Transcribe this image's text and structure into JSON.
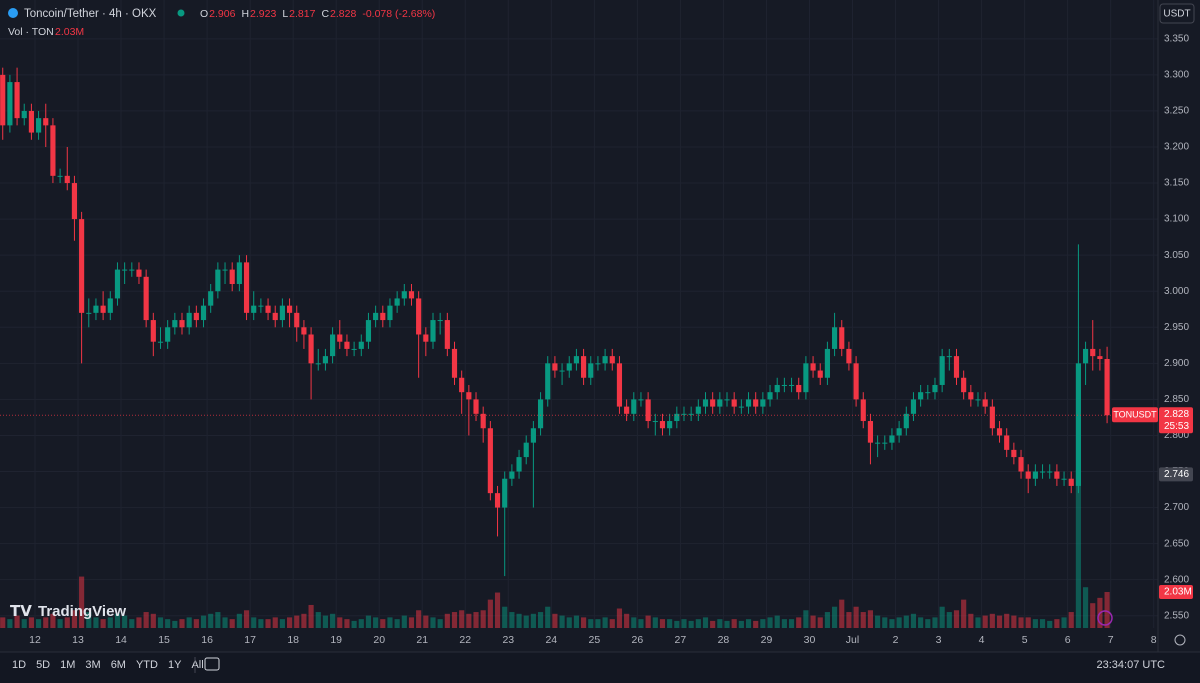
{
  "chart_data": {
    "type": "candlestick",
    "title": "Toncoin/Tether · 4h · OKX",
    "change": "-0.078 (-2.68%)",
    "volume_title": "Vol · TON",
    "volume_last_label": "2.03M",
    "symbol_label": "TONUSDT",
    "countdown": "25:53",
    "marker_level": 2.746,
    "colors": {
      "up": "#089981",
      "down": "#f23645"
    },
    "grid": true,
    "open": [
      3.3,
      3.23,
      3.29,
      3.24,
      3.25,
      3.22,
      3.24,
      3.23,
      3.16,
      3.16,
      3.15,
      3.1,
      2.97,
      2.97,
      2.98,
      2.97,
      2.99,
      3.03,
      3.03,
      3.03,
      3.02,
      2.96,
      2.93,
      2.93,
      2.95,
      2.96,
      2.95,
      2.97,
      2.96,
      2.98,
      3.0,
      3.03,
      3.03,
      3.01,
      3.04,
      2.97,
      2.98,
      2.98,
      2.97,
      2.96,
      2.98,
      2.97,
      2.95,
      2.94,
      2.9,
      2.9,
      2.91,
      2.94,
      2.93,
      2.92,
      2.92,
      2.93,
      2.96,
      2.97,
      2.96,
      2.98,
      2.99,
      3.0,
      2.99,
      2.94,
      2.93,
      2.96,
      2.96,
      2.92,
      2.88,
      2.86,
      2.85,
      2.83,
      2.81,
      2.72,
      2.7,
      2.74,
      2.75,
      2.77,
      2.79,
      2.81,
      2.85,
      2.9,
      2.89,
      2.89,
      2.9,
      2.91,
      2.88,
      2.9,
      2.9,
      2.91,
      2.9,
      2.84,
      2.83,
      2.85,
      2.85,
      2.82,
      2.82,
      2.81,
      2.82,
      2.83,
      2.83,
      2.83,
      2.84,
      2.85,
      2.84,
      2.85,
      2.85,
      2.84,
      2.84,
      2.85,
      2.84,
      2.85,
      2.86,
      2.87,
      2.87,
      2.87,
      2.86,
      2.9,
      2.89,
      2.88,
      2.92,
      2.95,
      2.92,
      2.9,
      2.85,
      2.82,
      2.79,
      2.79,
      2.79,
      2.8,
      2.81,
      2.83,
      2.85,
      2.86,
      2.86,
      2.87,
      2.91,
      2.91,
      2.88,
      2.86,
      2.85,
      2.85,
      2.84,
      2.81,
      2.8,
      2.78,
      2.77,
      2.75,
      2.74,
      2.75,
      2.75,
      2.75,
      2.74,
      2.74,
      2.73,
      2.9,
      2.92,
      2.91,
      2.906
    ],
    "high": [
      3.31,
      3.3,
      3.31,
      3.26,
      3.26,
      3.25,
      3.26,
      3.24,
      3.17,
      3.2,
      3.16,
      3.11,
      2.99,
      2.99,
      3.0,
      3.0,
      3.04,
      3.04,
      3.04,
      3.04,
      3.03,
      2.97,
      2.95,
      2.96,
      2.97,
      2.97,
      2.98,
      2.98,
      2.99,
      3.01,
      3.04,
      3.04,
      3.04,
      3.05,
      3.05,
      3.0,
      2.99,
      2.99,
      2.98,
      2.99,
      2.99,
      2.98,
      2.96,
      2.95,
      2.92,
      2.92,
      2.95,
      2.96,
      2.94,
      2.93,
      2.94,
      2.97,
      2.98,
      2.98,
      2.99,
      3.0,
      3.01,
      3.01,
      3.0,
      2.95,
      2.97,
      2.97,
      2.97,
      2.93,
      2.89,
      2.87,
      2.86,
      2.84,
      2.82,
      2.73,
      2.75,
      2.76,
      2.78,
      2.8,
      2.82,
      2.86,
      2.91,
      2.91,
      2.9,
      2.91,
      2.92,
      2.92,
      2.91,
      2.91,
      2.92,
      2.92,
      2.91,
      2.85,
      2.86,
      2.86,
      2.86,
      2.83,
      2.83,
      2.83,
      2.84,
      2.84,
      2.84,
      2.85,
      2.86,
      2.86,
      2.86,
      2.86,
      2.86,
      2.85,
      2.86,
      2.86,
      2.86,
      2.87,
      2.88,
      2.88,
      2.88,
      2.88,
      2.91,
      2.91,
      2.9,
      2.93,
      2.97,
      2.96,
      2.93,
      2.91,
      2.86,
      2.83,
      2.8,
      2.8,
      2.81,
      2.82,
      2.84,
      2.86,
      2.87,
      2.87,
      2.88,
      2.92,
      2.92,
      2.92,
      2.89,
      2.87,
      2.86,
      2.86,
      2.85,
      2.82,
      2.81,
      2.79,
      2.78,
      2.76,
      2.76,
      2.76,
      2.76,
      2.76,
      2.75,
      2.75,
      3.065,
      2.93,
      2.96,
      2.92,
      2.923
    ],
    "low": [
      3.21,
      3.22,
      3.23,
      3.23,
      3.21,
      3.21,
      3.2,
      3.15,
      3.15,
      3.14,
      3.07,
      2.9,
      2.95,
      2.96,
      2.96,
      2.96,
      2.98,
      3.01,
      3.02,
      3.01,
      2.95,
      2.91,
      2.92,
      2.92,
      2.94,
      2.94,
      2.94,
      2.95,
      2.95,
      2.97,
      2.99,
      3.01,
      3.0,
      3.0,
      2.96,
      2.96,
      2.97,
      2.96,
      2.95,
      2.95,
      2.95,
      2.93,
      2.92,
      2.85,
      2.89,
      2.89,
      2.9,
      2.92,
      2.91,
      2.91,
      2.91,
      2.92,
      2.95,
      2.95,
      2.95,
      2.97,
      2.98,
      2.98,
      2.88,
      2.91,
      2.92,
      2.94,
      2.91,
      2.87,
      2.83,
      2.8,
      2.82,
      2.79,
      2.71,
      2.66,
      2.605,
      2.73,
      2.74,
      2.76,
      2.7,
      2.8,
      2.84,
      2.88,
      2.87,
      2.88,
      2.89,
      2.87,
      2.87,
      2.89,
      2.89,
      2.89,
      2.83,
      2.82,
      2.82,
      2.84,
      2.81,
      2.8,
      2.8,
      2.8,
      2.81,
      2.82,
      2.82,
      2.82,
      2.83,
      2.83,
      2.83,
      2.84,
      2.83,
      2.83,
      2.83,
      2.83,
      2.83,
      2.84,
      2.85,
      2.86,
      2.86,
      2.85,
      2.85,
      2.88,
      2.87,
      2.87,
      2.91,
      2.91,
      2.89,
      2.84,
      2.81,
      2.76,
      2.77,
      2.78,
      2.78,
      2.79,
      2.8,
      2.82,
      2.84,
      2.85,
      2.85,
      2.86,
      2.89,
      2.87,
      2.85,
      2.84,
      2.84,
      2.83,
      2.8,
      2.79,
      2.77,
      2.76,
      2.74,
      2.72,
      2.73,
      2.74,
      2.74,
      2.73,
      2.73,
      2.72,
      2.72,
      2.87,
      2.89,
      2.89,
      2.817
    ],
    "close": [
      3.23,
      3.29,
      3.24,
      3.25,
      3.22,
      3.24,
      3.23,
      3.16,
      3.16,
      3.15,
      3.1,
      2.97,
      2.97,
      2.98,
      2.97,
      2.99,
      3.03,
      3.03,
      3.03,
      3.02,
      2.96,
      2.93,
      2.93,
      2.95,
      2.96,
      2.95,
      2.97,
      2.96,
      2.98,
      3.0,
      3.03,
      3.03,
      3.01,
      3.04,
      2.97,
      2.98,
      2.98,
      2.97,
      2.96,
      2.98,
      2.97,
      2.95,
      2.94,
      2.9,
      2.9,
      2.91,
      2.94,
      2.93,
      2.92,
      2.92,
      2.93,
      2.96,
      2.97,
      2.96,
      2.98,
      2.99,
      3.0,
      2.99,
      2.94,
      2.93,
      2.96,
      2.96,
      2.92,
      2.88,
      2.86,
      2.85,
      2.83,
      2.81,
      2.72,
      2.7,
      2.74,
      2.75,
      2.77,
      2.79,
      2.81,
      2.85,
      2.9,
      2.89,
      2.89,
      2.9,
      2.91,
      2.88,
      2.9,
      2.9,
      2.91,
      2.9,
      2.84,
      2.83,
      2.85,
      2.85,
      2.82,
      2.82,
      2.81,
      2.82,
      2.83,
      2.83,
      2.83,
      2.84,
      2.85,
      2.84,
      2.85,
      2.85,
      2.84,
      2.84,
      2.85,
      2.84,
      2.85,
      2.86,
      2.87,
      2.87,
      2.87,
      2.86,
      2.9,
      2.89,
      2.88,
      2.92,
      2.95,
      2.92,
      2.9,
      2.85,
      2.82,
      2.79,
      2.79,
      2.79,
      2.8,
      2.81,
      2.83,
      2.85,
      2.86,
      2.86,
      2.87,
      2.91,
      2.91,
      2.88,
      2.86,
      2.85,
      2.85,
      2.84,
      2.81,
      2.8,
      2.78,
      2.77,
      2.75,
      2.74,
      2.75,
      2.75,
      2.75,
      2.74,
      2.74,
      2.73,
      2.9,
      2.92,
      2.91,
      2.906,
      2.828
    ],
    "volume": [
      0.6,
      0.5,
      0.7,
      0.5,
      0.6,
      0.5,
      0.6,
      0.8,
      0.5,
      0.6,
      1.0,
      2.9,
      0.9,
      0.6,
      0.5,
      0.6,
      0.8,
      0.7,
      0.5,
      0.6,
      0.9,
      0.8,
      0.6,
      0.5,
      0.4,
      0.5,
      0.6,
      0.5,
      0.7,
      0.8,
      0.9,
      0.6,
      0.5,
      0.8,
      1.0,
      0.6,
      0.5,
      0.5,
      0.6,
      0.5,
      0.6,
      0.7,
      0.8,
      1.3,
      0.9,
      0.7,
      0.8,
      0.6,
      0.5,
      0.4,
      0.5,
      0.7,
      0.6,
      0.5,
      0.6,
      0.5,
      0.7,
      0.6,
      1.0,
      0.7,
      0.6,
      0.5,
      0.8,
      0.9,
      1.0,
      0.8,
      0.9,
      1.0,
      1.6,
      2.0,
      1.2,
      0.9,
      0.8,
      0.7,
      0.8,
      0.9,
      1.2,
      0.8,
      0.7,
      0.6,
      0.7,
      0.6,
      0.5,
      0.5,
      0.6,
      0.5,
      1.1,
      0.8,
      0.6,
      0.5,
      0.7,
      0.6,
      0.5,
      0.5,
      0.4,
      0.5,
      0.4,
      0.5,
      0.6,
      0.4,
      0.5,
      0.4,
      0.5,
      0.4,
      0.5,
      0.4,
      0.5,
      0.6,
      0.7,
      0.5,
      0.5,
      0.6,
      1.0,
      0.7,
      0.6,
      0.9,
      1.2,
      1.6,
      0.9,
      1.2,
      0.9,
      1.0,
      0.7,
      0.6,
      0.5,
      0.6,
      0.7,
      0.8,
      0.6,
      0.5,
      0.6,
      1.2,
      0.9,
      1.0,
      1.6,
      0.8,
      0.6,
      0.7,
      0.8,
      0.7,
      0.8,
      0.7,
      0.6,
      0.6,
      0.5,
      0.5,
      0.4,
      0.5,
      0.6,
      0.9,
      8.9,
      2.3,
      1.4,
      1.7,
      2.03
    ],
    "volume_lim": [
      0,
      9.7
    ],
    "xlim": [
      -0.38,
      161.1
    ],
    "ylim": [
      2.533,
      3.365
    ],
    "xticks": [
      {
        "value": 4.5,
        "label": "12"
      },
      {
        "value": 10.5,
        "label": "13"
      },
      {
        "value": 16.5,
        "label": "14"
      },
      {
        "value": 22.5,
        "label": "15"
      },
      {
        "value": 28.5,
        "label": "16"
      },
      {
        "value": 34.5,
        "label": "17"
      },
      {
        "value": 40.5,
        "label": "18"
      },
      {
        "value": 46.5,
        "label": "19"
      },
      {
        "value": 52.5,
        "label": "20"
      },
      {
        "value": 58.5,
        "label": "21"
      },
      {
        "value": 64.5,
        "label": "22"
      },
      {
        "value": 70.5,
        "label": "23"
      },
      {
        "value": 76.5,
        "label": "24"
      },
      {
        "value": 82.5,
        "label": "25"
      },
      {
        "value": 88.5,
        "label": "26"
      },
      {
        "value": 94.5,
        "label": "27"
      },
      {
        "value": 100.5,
        "label": "28"
      },
      {
        "value": 106.5,
        "label": "29"
      },
      {
        "value": 112.5,
        "label": "30"
      },
      {
        "value": 118.5,
        "label": "Jul"
      },
      {
        "value": 124.5,
        "label": "2"
      },
      {
        "value": 130.5,
        "label": "3"
      },
      {
        "value": 136.5,
        "label": "4"
      },
      {
        "value": 142.5,
        "label": "5"
      },
      {
        "value": 148.5,
        "label": "6"
      },
      {
        "value": 154.5,
        "label": "7"
      },
      {
        "value": 160.5,
        "label": "8"
      }
    ],
    "yticks": [
      {
        "value": 2.55,
        "label": "2.550"
      },
      {
        "value": 2.6,
        "label": "2.600"
      },
      {
        "value": 2.65,
        "label": "2.650"
      },
      {
        "value": 2.7,
        "label": "2.700"
      },
      {
        "value": 2.75,
        "label": "2.750"
      },
      {
        "value": 2.8,
        "label": "2.800"
      },
      {
        "value": 2.85,
        "label": "2.850"
      },
      {
        "value": 2.9,
        "label": "2.900"
      },
      {
        "value": 2.95,
        "label": "2.950"
      },
      {
        "value": 3.0,
        "label": "3.000"
      },
      {
        "value": 3.05,
        "label": "3.050"
      },
      {
        "value": 3.1,
        "label": "3.100"
      },
      {
        "value": 3.15,
        "label": "3.150"
      },
      {
        "value": 3.2,
        "label": "3.200"
      },
      {
        "value": 3.25,
        "label": "3.250"
      },
      {
        "value": 3.3,
        "label": "3.300"
      },
      {
        "value": 3.35,
        "label": "3.350"
      }
    ]
  },
  "ui": {
    "ohlc_letters": [
      "O",
      "H",
      "L",
      "C"
    ],
    "currency": "USDT",
    "brand": "TradingView",
    "ranges": [
      "1D",
      "5D",
      "1M",
      "3M",
      "6M",
      "YTD",
      "1Y",
      "All"
    ],
    "clock": "23:34:07 UTC"
  }
}
